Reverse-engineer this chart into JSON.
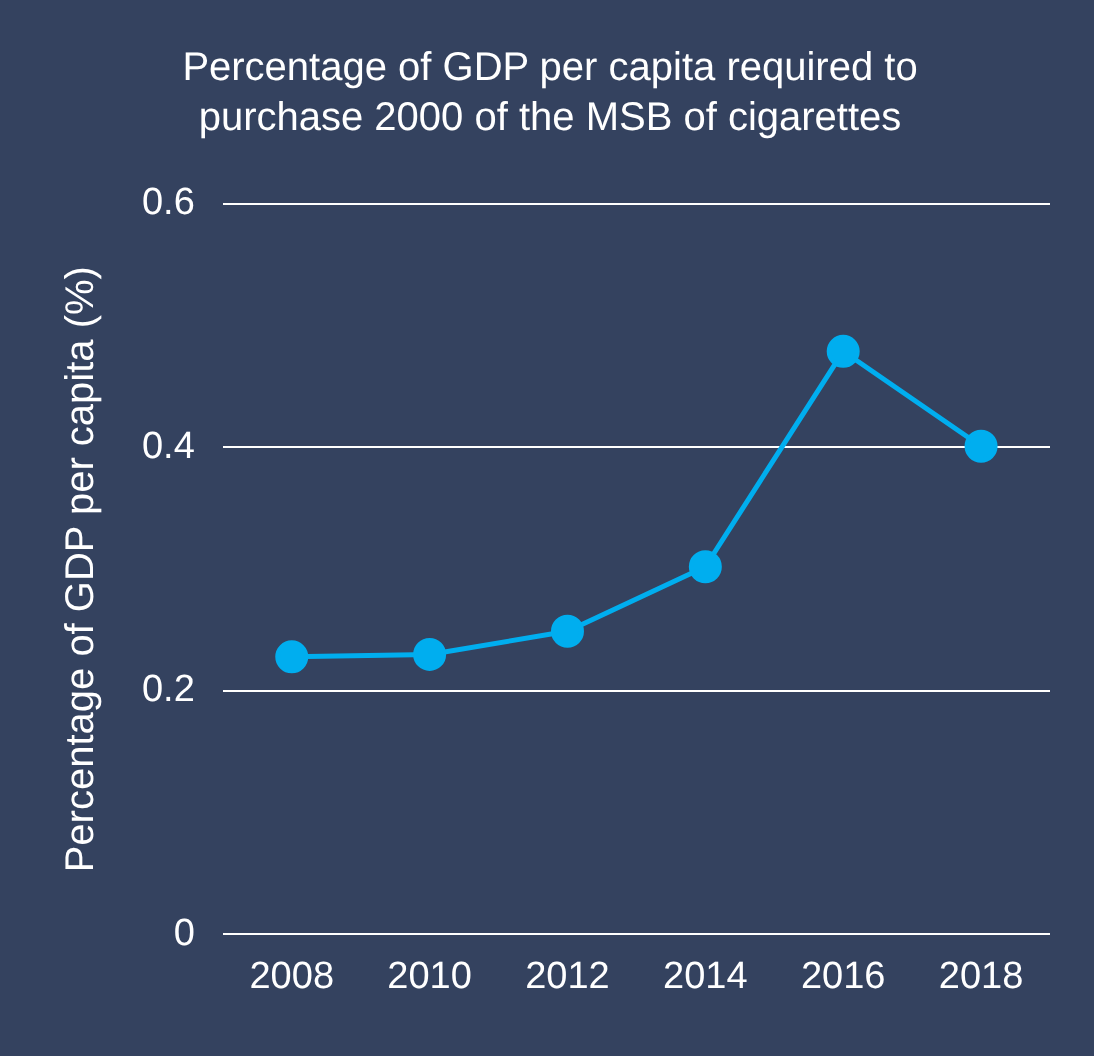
{
  "chart_data": {
    "type": "line",
    "title": "Percentage of GDP per capita required to purchase 2000 of the MSB of cigarettes",
    "ylabel": "Percentage of GDP per capita (%)",
    "categories": [
      "2008",
      "2010",
      "2012",
      "2014",
      "2016",
      "2018"
    ],
    "series": [
      {
        "color": "#00aeef",
        "values": [
          0.228,
          0.23,
          0.249,
          0.302,
          0.479,
          0.401
        ]
      }
    ],
    "ylim": [
      0,
      0.6
    ],
    "yticks": [
      0,
      {
        "value": 0.2,
        "label": "0.2"
      },
      {
        "value": 0.4,
        "label": "0.4"
      },
      {
        "value": 0.6,
        "label": "0.6"
      }
    ],
    "grid": "y",
    "marker": "circle",
    "line_style": "solid",
    "legend": false
  }
}
